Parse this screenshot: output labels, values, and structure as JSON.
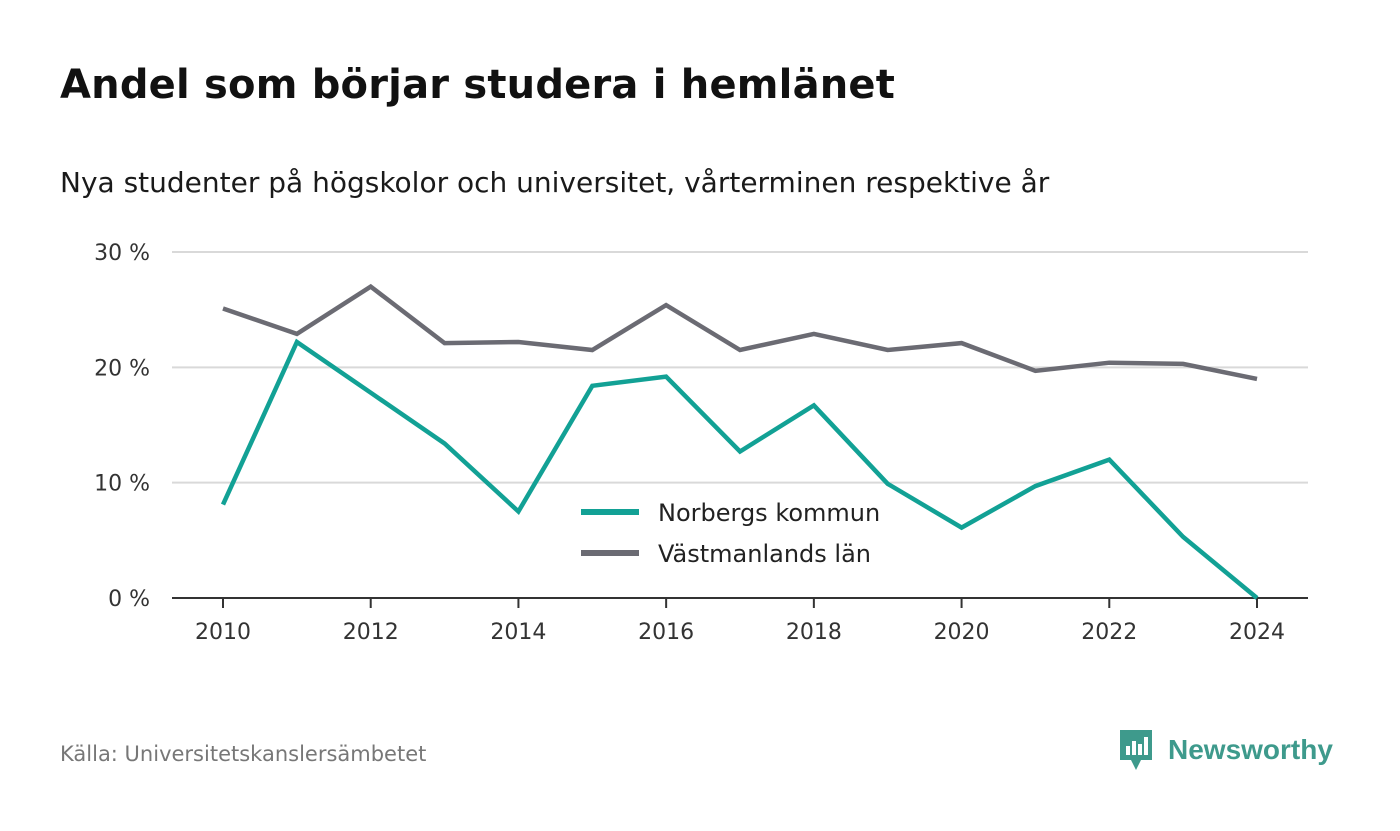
{
  "title": "Andel som börjar studera i hemlänet",
  "subtitle": "Nya studenter på högskolor och universitet, vårterminen respektive år",
  "source": "Källa: Universitetskanslersämbetet",
  "brand": "Newsworthy",
  "colors": {
    "series_1": "#12a195",
    "series_2": "#6b6b73",
    "grid": "#d9d9d9",
    "brand": "#3e9a8c"
  },
  "chart_data": {
    "type": "line",
    "x": [
      2010,
      2011,
      2012,
      2013,
      2014,
      2015,
      2016,
      2017,
      2018,
      2019,
      2020,
      2021,
      2022,
      2023,
      2024
    ],
    "series": [
      {
        "name": "Norbergs kommun",
        "values": [
          8.1,
          22.2,
          17.8,
          13.4,
          7.5,
          18.4,
          19.2,
          12.7,
          16.7,
          9.9,
          6.1,
          9.7,
          12.0,
          5.3,
          0.0
        ]
      },
      {
        "name": "Västmanlands län",
        "values": [
          25.1,
          22.9,
          27.0,
          22.1,
          22.2,
          21.5,
          25.4,
          21.5,
          22.9,
          21.5,
          22.1,
          19.7,
          20.4,
          20.3,
          19.0
        ]
      }
    ],
    "xticks": [
      2010,
      2012,
      2014,
      2016,
      2018,
      2020,
      2022,
      2024
    ],
    "yticks": [
      {
        "value": 0,
        "label": "0 %"
      },
      {
        "value": 10,
        "label": "10 %"
      },
      {
        "value": 20,
        "label": "20 %"
      },
      {
        "value": 30,
        "label": "30 %"
      }
    ],
    "ylim": [
      0,
      30
    ],
    "xlim": [
      2010,
      2024
    ],
    "grid": true,
    "legend_position": "bottom-center"
  }
}
